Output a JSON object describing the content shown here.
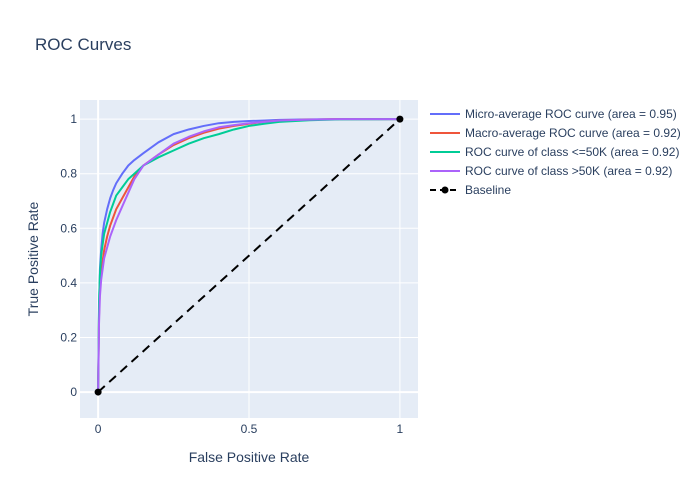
{
  "chart_data": {
    "type": "line",
    "title": "ROC Curves",
    "xlabel": "False Positive Rate",
    "ylabel": "True Positive Rate",
    "xlim": [
      -0.06,
      1.06
    ],
    "ylim": [
      -0.095,
      1.07
    ],
    "x_ticks": [
      0,
      0.5,
      1
    ],
    "x_tick_labels": [
      "0",
      "0.5",
      "1"
    ],
    "y_ticks": [
      0,
      0.2,
      0.4,
      0.6,
      0.8,
      1
    ],
    "y_tick_labels": [
      "0",
      "0.2",
      "0.4",
      "0.6",
      "0.8",
      "1"
    ],
    "grid": true,
    "legend_position": "right",
    "background_color": "#e5ecf6",
    "series": [
      {
        "name": "Micro-average ROC curve (area = 0.95)",
        "color": "#636efa",
        "dash": "solid",
        "x": [
          0,
          0.003,
          0.006,
          0.01,
          0.015,
          0.02,
          0.03,
          0.04,
          0.05,
          0.06,
          0.08,
          0.1,
          0.12,
          0.15,
          0.2,
          0.25,
          0.3,
          0.35,
          0.4,
          0.45,
          0.5,
          0.55,
          0.6,
          0.7,
          0.8,
          1.0
        ],
        "y": [
          0,
          0.3,
          0.45,
          0.52,
          0.58,
          0.62,
          0.67,
          0.71,
          0.74,
          0.765,
          0.8,
          0.83,
          0.85,
          0.875,
          0.915,
          0.945,
          0.962,
          0.975,
          0.985,
          0.99,
          0.993,
          0.995,
          0.997,
          0.999,
          1.0,
          1.0
        ]
      },
      {
        "name": "Macro-average ROC curve (area = 0.92)",
        "color": "#ef553b",
        "dash": "solid",
        "x": [
          0,
          0.003,
          0.006,
          0.01,
          0.015,
          0.02,
          0.03,
          0.04,
          0.05,
          0.06,
          0.08,
          0.1,
          0.12,
          0.15,
          0.2,
          0.25,
          0.3,
          0.35,
          0.4,
          0.45,
          0.5,
          0.55,
          0.6,
          0.7,
          0.8,
          1.0
        ],
        "y": [
          0,
          0.28,
          0.38,
          0.44,
          0.48,
          0.52,
          0.57,
          0.61,
          0.64,
          0.67,
          0.71,
          0.75,
          0.79,
          0.83,
          0.87,
          0.905,
          0.93,
          0.95,
          0.965,
          0.975,
          0.983,
          0.99,
          0.995,
          0.998,
          1.0,
          1.0
        ]
      },
      {
        "name": "ROC curve of class <=50K (area = 0.92)",
        "color": "#00cc96",
        "dash": "solid",
        "x": [
          0,
          0.003,
          0.006,
          0.01,
          0.015,
          0.02,
          0.03,
          0.04,
          0.05,
          0.06,
          0.08,
          0.1,
          0.12,
          0.15,
          0.2,
          0.25,
          0.3,
          0.35,
          0.4,
          0.45,
          0.5,
          0.55,
          0.6,
          0.7,
          0.8,
          1.0
        ],
        "y": [
          0,
          0.33,
          0.43,
          0.5,
          0.54,
          0.58,
          0.62,
          0.66,
          0.69,
          0.72,
          0.75,
          0.78,
          0.8,
          0.83,
          0.86,
          0.885,
          0.91,
          0.93,
          0.945,
          0.962,
          0.975,
          0.983,
          0.99,
          0.996,
          0.999,
          1.0
        ]
      },
      {
        "name": "ROC curve of class >50K (area = 0.92)",
        "color": "#ab63fa",
        "dash": "solid",
        "x": [
          0,
          0.003,
          0.006,
          0.01,
          0.015,
          0.02,
          0.03,
          0.04,
          0.05,
          0.06,
          0.08,
          0.1,
          0.12,
          0.15,
          0.2,
          0.25,
          0.3,
          0.35,
          0.4,
          0.45,
          0.5,
          0.55,
          0.6,
          0.7,
          0.8,
          1.0
        ],
        "y": [
          0,
          0.25,
          0.35,
          0.41,
          0.45,
          0.49,
          0.53,
          0.57,
          0.6,
          0.63,
          0.68,
          0.73,
          0.78,
          0.83,
          0.87,
          0.91,
          0.935,
          0.955,
          0.97,
          0.978,
          0.985,
          0.99,
          0.995,
          0.998,
          1.0,
          1.0
        ]
      },
      {
        "name": "Baseline",
        "color": "#000000",
        "dash": "dash",
        "markers": true,
        "x": [
          0,
          1
        ],
        "y": [
          0,
          1
        ]
      }
    ]
  }
}
